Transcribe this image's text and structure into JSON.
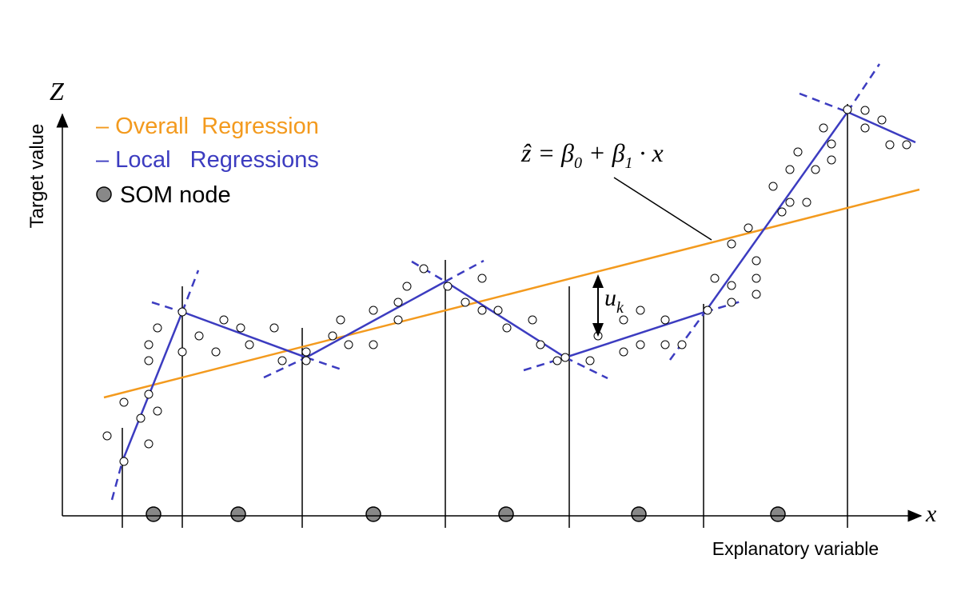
{
  "axes": {
    "y_symbol": "Z",
    "x_symbol": "x",
    "y_label": "Target value",
    "x_label": "Explanatory variable"
  },
  "legend": {
    "overall": "– Overall  Regression",
    "local": "– Local   Regressions",
    "node": "SOM node"
  },
  "formula": {
    "parts": [
      "ẑ = β",
      "0",
      " + β",
      "1",
      " · x"
    ]
  },
  "residual": {
    "parts": [
      "u",
      "k"
    ]
  }
}
